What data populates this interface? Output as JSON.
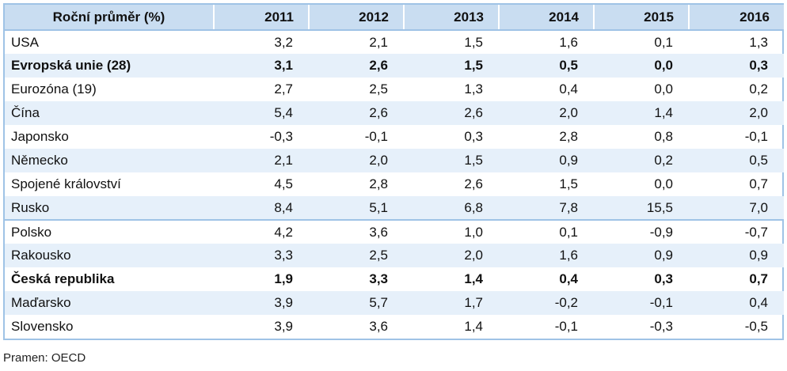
{
  "table": {
    "header": [
      "Roční průměr (%)",
      "2011",
      "2012",
      "2013",
      "2014",
      "2015",
      "2016"
    ],
    "rows": [
      {
        "label": "USA",
        "values": [
          "3,2",
          "2,1",
          "1,5",
          "1,6",
          "0,1",
          "1,3"
        ],
        "bold": false
      },
      {
        "label": "Evropská unie (28)",
        "values": [
          "3,1",
          "2,6",
          "1,5",
          "0,5",
          "0,0",
          "0,3"
        ],
        "bold": true
      },
      {
        "label": "Eurozóna (19)",
        "values": [
          "2,7",
          "2,5",
          "1,3",
          "0,4",
          "0,0",
          "0,2"
        ],
        "bold": false
      },
      {
        "label": "Čína",
        "values": [
          "5,4",
          "2,6",
          "2,6",
          "2,0",
          "1,4",
          "2,0"
        ],
        "bold": false
      },
      {
        "label": "Japonsko",
        "values": [
          "-0,3",
          "-0,1",
          "0,3",
          "2,8",
          "0,8",
          "-0,1"
        ],
        "bold": false
      },
      {
        "label": "Německo",
        "values": [
          "2,1",
          "2,0",
          "1,5",
          "0,9",
          "0,2",
          "0,5"
        ],
        "bold": false
      },
      {
        "label": "Spojené království",
        "values": [
          "4,5",
          "2,8",
          "2,6",
          "1,5",
          "0,0",
          "0,7"
        ],
        "bold": false
      },
      {
        "label": "Rusko",
        "values": [
          "8,4",
          "5,1",
          "6,8",
          "7,8",
          "15,5",
          "7,0"
        ],
        "bold": false
      },
      {
        "label": "Polsko",
        "values": [
          "4,2",
          "3,6",
          "1,0",
          "0,1",
          "-0,9",
          "-0,7"
        ],
        "bold": false
      },
      {
        "label": "Rakousko",
        "values": [
          "3,3",
          "2,5",
          "2,0",
          "1,6",
          "0,9",
          "0,9"
        ],
        "bold": false
      },
      {
        "label": "Česká republika",
        "values": [
          "1,9",
          "3,3",
          "1,4",
          "0,4",
          "0,3",
          "0,7"
        ],
        "bold": true
      },
      {
        "label": "Maďarsko",
        "values": [
          "3,9",
          "5,7",
          "1,7",
          "-0,2",
          "-0,1",
          "0,4"
        ],
        "bold": false
      },
      {
        "label": "Slovensko",
        "values": [
          "3,9",
          "3,6",
          "1,4",
          "-0,1",
          "-0,3",
          "-0,5"
        ],
        "bold": false
      }
    ]
  },
  "source": "Pramen: OECD",
  "colors": {
    "header_bg": "#c9ddf1",
    "stripe_bg": "#e6f0fa",
    "border": "#9fc3e6"
  }
}
